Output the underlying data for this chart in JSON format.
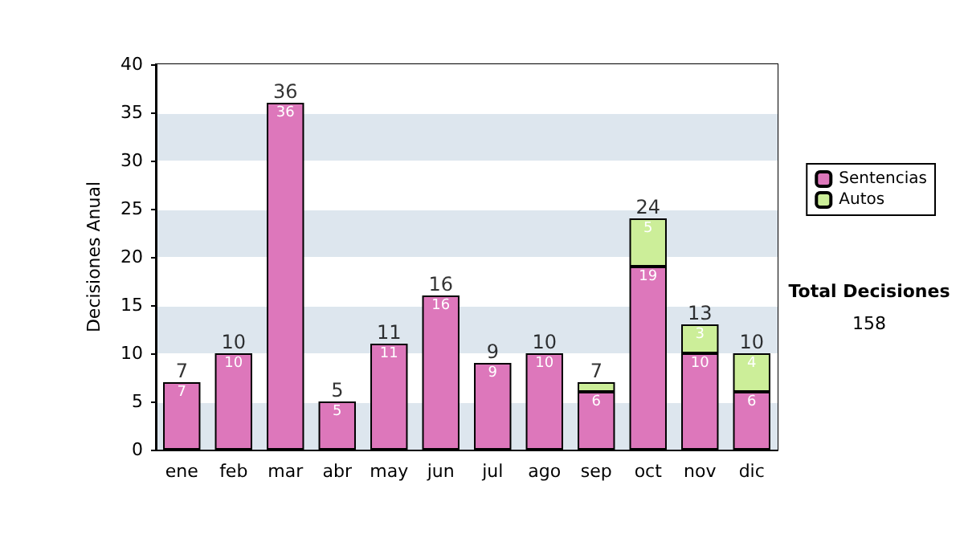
{
  "chart_data": {
    "type": "bar",
    "ylabel": "Decisiones Anual",
    "categories": [
      "ene",
      "feb",
      "mar",
      "abr",
      "may",
      "jun",
      "jul",
      "ago",
      "sep",
      "oct",
      "nov",
      "dic"
    ],
    "stacked": true,
    "series": [
      {
        "name": "Sentencias",
        "color": "#dd77bb",
        "values": [
          7,
          10,
          36,
          5,
          11,
          16,
          9,
          10,
          6,
          19,
          10,
          6
        ],
        "value_labels": [
          "7",
          "10",
          "36",
          "5",
          "11",
          "16",
          "9",
          "10",
          "6",
          "19",
          "10",
          "6"
        ]
      },
      {
        "name": "Autos",
        "color": "#ccee99",
        "values": [
          null,
          null,
          null,
          null,
          null,
          null,
          null,
          null,
          1,
          5,
          3,
          4
        ],
        "value_labels": [
          null,
          null,
          null,
          null,
          null,
          null,
          null,
          null,
          null,
          "5",
          "3",
          "4"
        ]
      }
    ],
    "totals": [
      "7",
      "10",
      "36",
      "5",
      "11",
      "16",
      "9",
      "10",
      "7",
      "24",
      "13",
      "10"
    ],
    "ylim": [
      0,
      40
    ],
    "yticks": [
      0,
      5,
      10,
      15,
      20,
      25,
      30,
      35,
      40
    ],
    "grid": "y",
    "legend": "right",
    "annotations": [
      "Total Decisiones",
      "158"
    ]
  }
}
